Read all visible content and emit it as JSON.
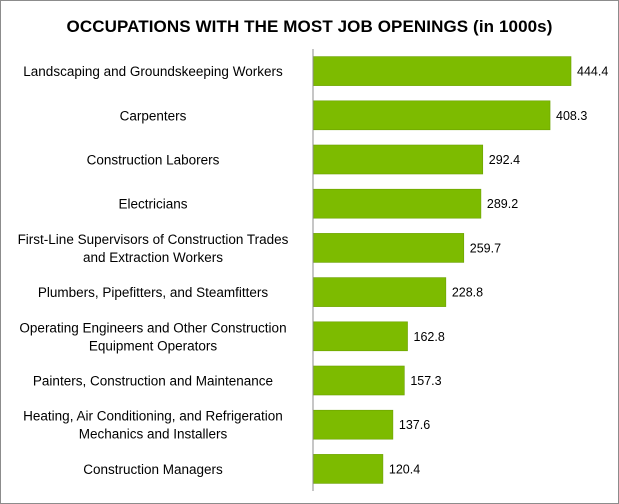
{
  "chart_data": {
    "type": "bar",
    "orientation": "horizontal",
    "title": "OCCUPATIONS WITH THE MOST JOB OPENINGS (in 1000s)",
    "categories": [
      "Landscaping and Groundskeeping Workers",
      "Carpenters",
      "Construction Laborers",
      "Electricians",
      "First-Line Supervisors of Construction Trades and Extraction Workers",
      "Plumbers, Pipefitters, and Steamfitters",
      "Operating Engineers and Other Construction Equipment Operators",
      "Painters, Construction and Maintenance",
      "Heating, Air Conditioning, and Refrigeration Mechanics and Installers",
      "Construction Managers"
    ],
    "category_lines": [
      [
        "Landscaping and Groundskeeping Workers"
      ],
      [
        "Carpenters"
      ],
      [
        "Construction Laborers"
      ],
      [
        "Electricians"
      ],
      [
        "First-Line Supervisors of Construction Trades",
        "and Extraction Workers"
      ],
      [
        "Plumbers, Pipefitters, and Steamfitters"
      ],
      [
        "Operating Engineers and Other Construction",
        "Equipment Operators"
      ],
      [
        "Painters, Construction and Maintenance"
      ],
      [
        "Heating, Air Conditioning, and Refrigeration",
        "Mechanics and Installers"
      ],
      [
        "Construction Managers"
      ]
    ],
    "values": [
      444.4,
      408.3,
      292.4,
      289.2,
      259.7,
      228.8,
      162.8,
      157.3,
      137.6,
      120.4
    ],
    "value_labels": [
      "444.4",
      "408.3",
      "292.4",
      "289.2",
      "259.7",
      "228.8",
      "162.8",
      "157.3",
      "137.6",
      "120.4"
    ],
    "xlim": [
      0,
      500
    ],
    "grid": false,
    "legend": "none",
    "colors": {
      "bar": "#7dbb00",
      "bar_edge": "#6aa000",
      "axis": "#8c8c8c"
    }
  }
}
